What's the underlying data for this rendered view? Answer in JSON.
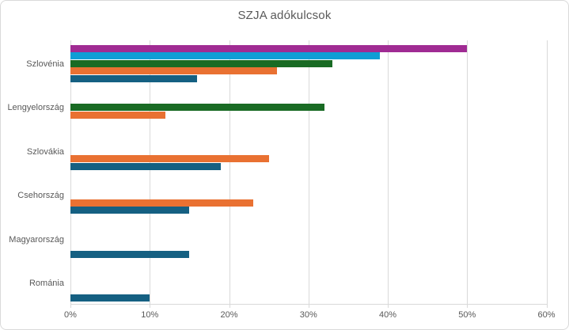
{
  "frame": {
    "background": "#FFFFFF",
    "border_color": "#D9D9D9"
  },
  "chart_data": {
    "type": "bar",
    "orientation": "horizontal",
    "title": "SZJA adókulcsok",
    "title_color": "#595959",
    "text_color": "#595959",
    "gridline_color": "#D9D9D9",
    "grid": true,
    "legend": "none",
    "categories": [
      "Szlovénia",
      "Lengyelország",
      "Szlovákia",
      "Csehország",
      "Magyarország",
      "Románia"
    ],
    "series": [
      {
        "key": "series-1",
        "color": "#156082",
        "values": [
          16,
          null,
          19,
          15,
          15,
          10
        ]
      },
      {
        "key": "series-2",
        "color": "#E97132",
        "values": [
          26,
          12,
          25,
          23,
          null,
          null
        ]
      },
      {
        "key": "series-3",
        "color": "#196B24",
        "values": [
          33,
          32,
          null,
          null,
          null,
          null
        ]
      },
      {
        "key": "series-4",
        "color": "#0F9ED5",
        "values": [
          39,
          null,
          null,
          null,
          null,
          null
        ]
      },
      {
        "key": "series-5",
        "color": "#A02B93",
        "values": [
          50,
          null,
          null,
          null,
          null,
          null
        ]
      }
    ],
    "x_axis": {
      "min": 0,
      "max": 60,
      "tick_step": 10,
      "tick_labels": [
        "0%",
        "10%",
        "20%",
        "30%",
        "40%",
        "50%",
        "60%"
      ]
    }
  }
}
